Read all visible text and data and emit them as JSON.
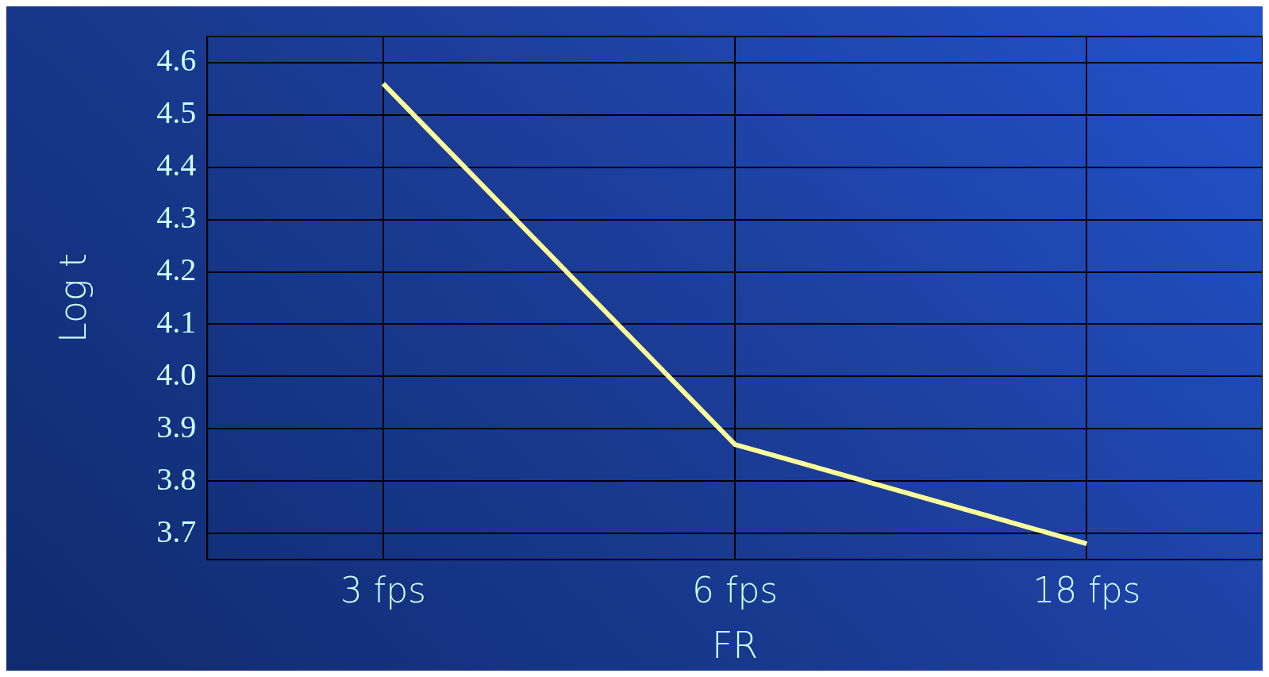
{
  "chart_data": {
    "type": "line",
    "xlabel": "FR",
    "ylabel": "Log t",
    "categories": [
      "3 fps",
      "6 fps",
      "18 fps"
    ],
    "series": [
      {
        "color": "#ffff99",
        "values": [
          4.56,
          3.87,
          3.68
        ]
      }
    ],
    "ylim": [
      3.65,
      4.65
    ],
    "yticks": [
      3.7,
      3.8,
      3.9,
      {
        "value": 4.0,
        "label": "4.0"
      },
      4.1,
      4.2,
      4.3,
      4.4,
      4.5,
      4.6
    ],
    "grid": true,
    "legend": false,
    "marker": "none",
    "line_style": "solid"
  }
}
